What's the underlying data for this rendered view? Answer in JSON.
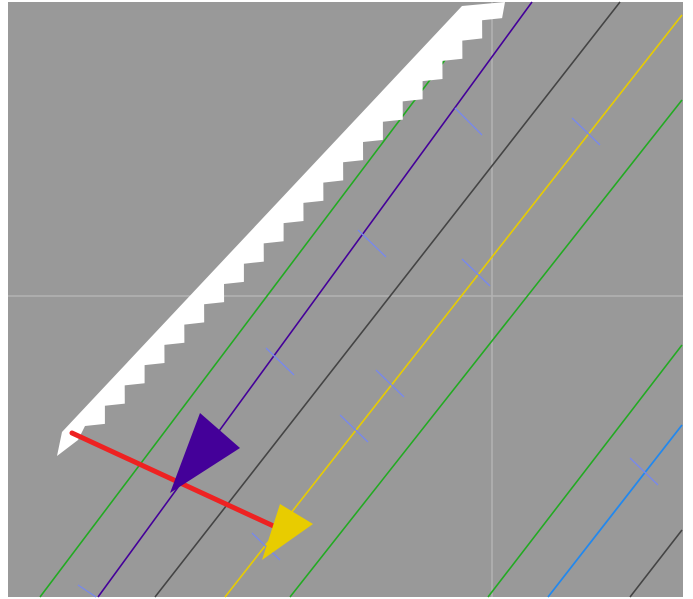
{
  "scene": {
    "background": "#999999",
    "frame": "#ffffff",
    "crosshair": "#b4b4b4"
  },
  "lanes": [
    {
      "name": "lane-green-left",
      "color": "#22aa22"
    },
    {
      "name": "lane-purple",
      "color": "#440099"
    },
    {
      "name": "lane-dark-gray",
      "color": "#444444"
    },
    {
      "name": "lane-yellow",
      "color": "#e8cc00"
    },
    {
      "name": "lane-green-center",
      "color": "#22aa22"
    },
    {
      "name": "lane-green-right",
      "color": "#22aa22"
    },
    {
      "name": "lane-blue",
      "color": "#2288ee"
    },
    {
      "name": "lane-dark-gray-right",
      "color": "#444444"
    }
  ],
  "markers": {
    "tick_color": "#7788ee",
    "white_arrow_color": "#ffffff",
    "purple_arrow_color": "#440099",
    "yellow_arrow_color": "#e8cc00",
    "red_segment_color": "#ee2222"
  },
  "icons": {
    "white_arrow": "serrated-arrow-icon",
    "purple_arrow": "triangle-icon",
    "yellow_arrow": "triangle-icon"
  }
}
